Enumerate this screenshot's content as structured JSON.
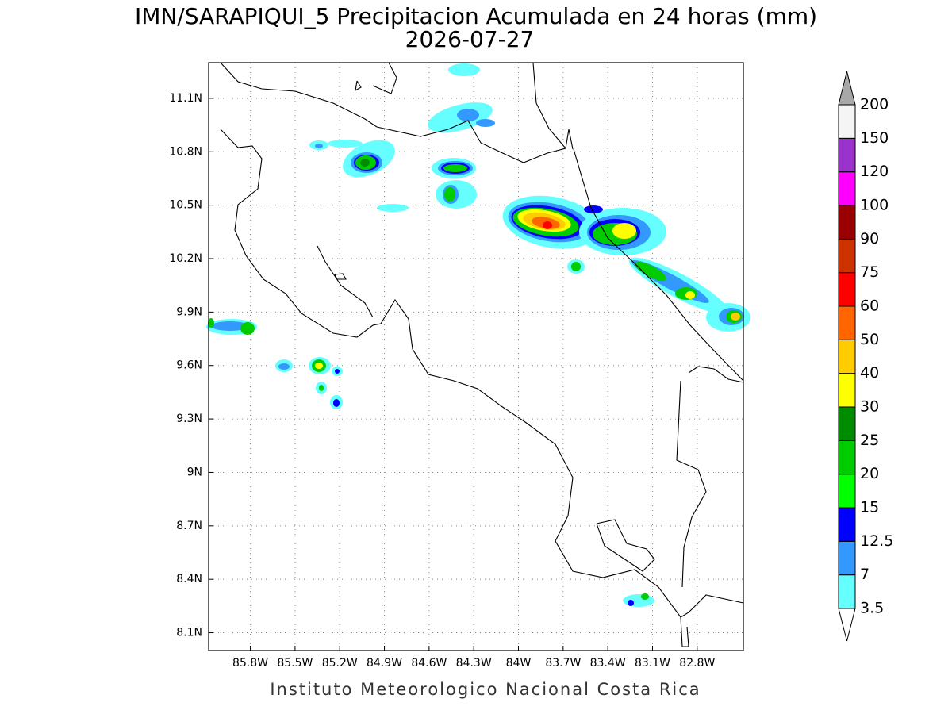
{
  "title": "IMN/SARAPIQUI_5 Precipitacion Acumulada en 24 horas (mm)",
  "date": "2026-07-27",
  "map": {
    "lon_range": [
      -86.08,
      -82.49
    ],
    "lat_range": [
      8.0,
      11.3
    ],
    "lon_ticks": [
      {
        "value": -85.8,
        "label": "85.8W"
      },
      {
        "value": -85.5,
        "label": "85.5W"
      },
      {
        "value": -85.2,
        "label": "85.2W"
      },
      {
        "value": -84.9,
        "label": "84.9W"
      },
      {
        "value": -84.6,
        "label": "84.6W"
      },
      {
        "value": -84.3,
        "label": "84.3W"
      },
      {
        "value": -84,
        "label": "84W"
      },
      {
        "value": -83.7,
        "label": "83.7W"
      },
      {
        "value": -83.4,
        "label": "83.4W"
      },
      {
        "value": -83.1,
        "label": "83.1W"
      },
      {
        "value": -82.8,
        "label": "82.8W"
      }
    ],
    "lat_ticks": [
      {
        "value": 11.1,
        "label": "11.1N"
      },
      {
        "value": 10.8,
        "label": "10.8N"
      },
      {
        "value": 10.5,
        "label": "10.5N"
      },
      {
        "value": 10.2,
        "label": "10.2N"
      },
      {
        "value": 9.9,
        "label": "9.9N"
      },
      {
        "value": 9.6,
        "label": "9.6N"
      },
      {
        "value": 9.3,
        "label": "9.3N"
      },
      {
        "value": 9,
        "label": "9N"
      },
      {
        "value": 8.7,
        "label": "8.7N"
      },
      {
        "value": 8.4,
        "label": "8.4N"
      },
      {
        "value": 8.1,
        "label": "8.1N"
      }
    ]
  },
  "colorbar": {
    "levels": [
      3.5,
      7,
      12.5,
      15,
      20,
      25,
      30,
      40,
      50,
      60,
      75,
      90,
      100,
      120,
      150,
      200
    ],
    "colors": [
      "#66ffff",
      "#3399ff",
      "#0000ff",
      "#00ff00",
      "#00cc00",
      "#008c00",
      "#ffff00",
      "#ffcc00",
      "#ff6600",
      "#ff0000",
      "#cc3300",
      "#990000",
      "#ff00ff",
      "#9933cc",
      "#f5f5f5"
    ],
    "under_color": "#ffffff",
    "over_color": "#a8a8a8"
  },
  "footer": "Instituto Meteorologico Nacional Costa Rica"
}
